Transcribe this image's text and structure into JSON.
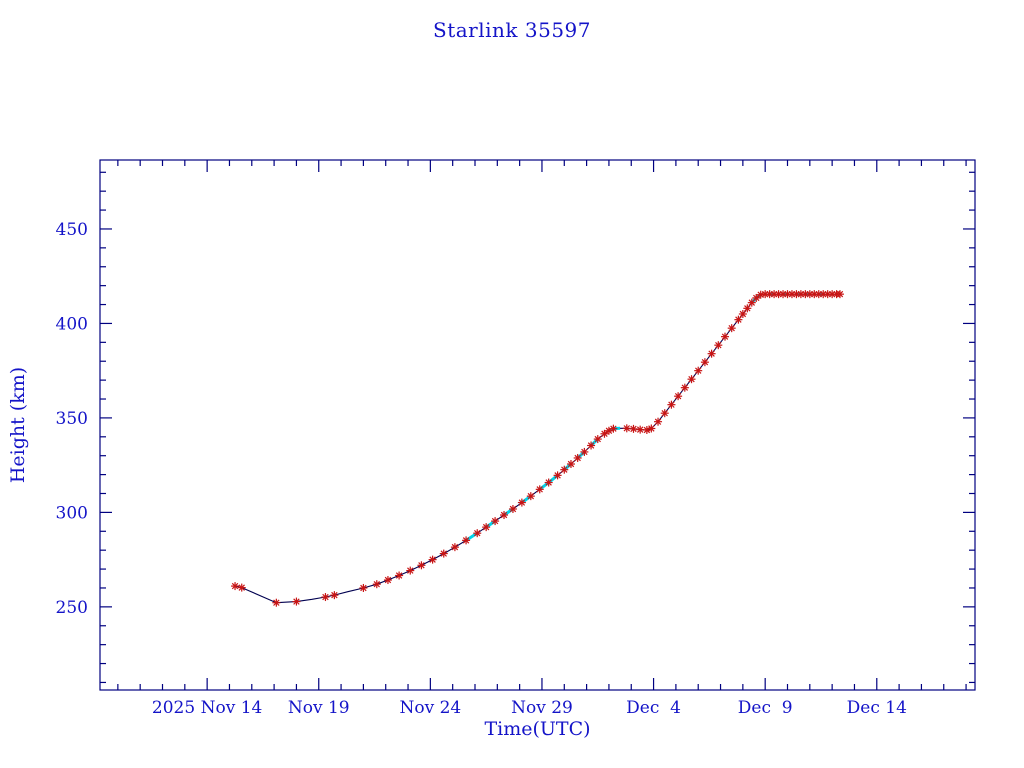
{
  "chart_data": {
    "type": "line",
    "title": "Starlink 35597",
    "xlabel": "Time(UTC)",
    "ylabel": "Height (km)",
    "x_unit": "days since 2025 Nov 14 00:00 UTC",
    "xlim": [
      -4.8,
      34.4
    ],
    "ylim": [
      206,
      486.5
    ],
    "y_ticks": [
      250,
      300,
      350,
      400,
      450
    ],
    "y_minor_step": 10,
    "x_ticks": [
      {
        "day": 0,
        "label": "2025 Nov 14"
      },
      {
        "day": 5,
        "label": "Nov 19"
      },
      {
        "day": 10,
        "label": "Nov 24"
      },
      {
        "day": 15,
        "label": "Nov 29"
      },
      {
        "day": 20,
        "label": "Dec  4"
      },
      {
        "day": 25,
        "label": "Dec  9"
      },
      {
        "day": 30,
        "label": "Dec 14"
      }
    ],
    "x_minor_step": 1,
    "grid": false,
    "legend": "none",
    "colors": {
      "text": "#1414c8",
      "axis": "#000080",
      "line": "#000050",
      "marker": "#c81414",
      "highlight": "#00d4ea"
    },
    "series": [
      {
        "name": "height",
        "note": "points are [day_offset, height_km, cyan_segment_flag, red_marker_flag]",
        "points": [
          [
            1.25,
            261.0,
            0,
            1
          ],
          [
            1.55,
            260.2,
            0,
            1
          ],
          [
            3.1,
            252.2,
            0,
            1
          ],
          [
            4.0,
            252.8,
            0,
            1
          ],
          [
            4.7,
            254.0,
            0,
            0
          ],
          [
            5.3,
            255.2,
            0,
            1
          ],
          [
            5.7,
            256.2,
            0,
            1
          ],
          [
            6.3,
            258.0,
            0,
            0
          ],
          [
            7.0,
            260.0,
            0,
            1
          ],
          [
            7.6,
            262.0,
            0,
            1
          ],
          [
            8.1,
            264.2,
            0,
            1
          ],
          [
            8.6,
            266.6,
            0,
            1
          ],
          [
            9.1,
            269.2,
            0,
            1
          ],
          [
            9.6,
            272.0,
            0,
            1
          ],
          [
            10.1,
            275.0,
            0,
            1
          ],
          [
            10.6,
            278.2,
            0,
            1
          ],
          [
            11.1,
            281.6,
            0,
            1
          ],
          [
            11.6,
            285.2,
            0,
            1
          ],
          [
            12.1,
            289.0,
            1,
            1
          ],
          [
            12.5,
            292.2,
            0,
            1
          ],
          [
            12.9,
            295.4,
            1,
            1
          ],
          [
            13.3,
            298.6,
            0,
            1
          ],
          [
            13.7,
            301.8,
            1,
            1
          ],
          [
            14.1,
            305.2,
            0,
            1
          ],
          [
            14.5,
            308.6,
            1,
            1
          ],
          [
            14.9,
            312.2,
            0,
            1
          ],
          [
            15.3,
            315.8,
            1,
            1
          ],
          [
            15.7,
            319.6,
            1,
            1
          ],
          [
            16.0,
            322.6,
            0,
            1
          ],
          [
            16.3,
            325.6,
            1,
            1
          ],
          [
            16.6,
            328.8,
            0,
            1
          ],
          [
            16.9,
            332.0,
            1,
            1
          ],
          [
            17.2,
            335.4,
            0,
            1
          ],
          [
            17.5,
            338.8,
            1,
            1
          ],
          [
            17.8,
            341.6,
            0,
            1
          ],
          [
            18.0,
            343.2,
            0,
            1
          ],
          [
            18.2,
            344.3,
            1,
            1
          ],
          [
            18.5,
            344.5,
            1,
            0
          ],
          [
            18.8,
            344.5,
            0,
            1
          ],
          [
            19.1,
            344.2,
            0,
            1
          ],
          [
            19.4,
            343.8,
            0,
            1
          ],
          [
            19.7,
            343.6,
            0,
            1
          ],
          [
            19.9,
            344.4,
            0,
            1
          ],
          [
            20.2,
            348.0,
            0,
            1
          ],
          [
            20.5,
            352.5,
            0,
            1
          ],
          [
            20.8,
            357.0,
            0,
            1
          ],
          [
            21.1,
            361.5,
            0,
            1
          ],
          [
            21.4,
            366.0,
            0,
            1
          ],
          [
            21.7,
            370.5,
            0,
            1
          ],
          [
            22.0,
            375.0,
            0,
            1
          ],
          [
            22.3,
            379.5,
            0,
            1
          ],
          [
            22.6,
            384.0,
            0,
            1
          ],
          [
            22.9,
            388.5,
            0,
            1
          ],
          [
            23.2,
            393.0,
            0,
            1
          ],
          [
            23.5,
            397.5,
            0,
            1
          ],
          [
            23.8,
            402.0,
            0,
            1
          ],
          [
            24.0,
            405.0,
            0,
            1
          ],
          [
            24.2,
            408.0,
            0,
            1
          ],
          [
            24.4,
            411.0,
            0,
            1
          ],
          [
            24.6,
            413.5,
            1,
            1
          ],
          [
            24.8,
            415.2,
            1,
            1
          ],
          [
            25.0,
            415.5,
            0,
            1
          ],
          [
            25.2,
            415.5,
            0,
            1
          ],
          [
            25.4,
            415.5,
            1,
            1
          ],
          [
            25.6,
            415.5,
            0,
            1
          ],
          [
            25.8,
            415.5,
            0,
            1
          ],
          [
            26.0,
            415.5,
            1,
            1
          ],
          [
            26.2,
            415.5,
            0,
            1
          ],
          [
            26.4,
            415.5,
            0,
            1
          ],
          [
            26.6,
            415.5,
            1,
            1
          ],
          [
            26.8,
            415.5,
            0,
            1
          ],
          [
            27.0,
            415.5,
            1,
            1
          ],
          [
            27.2,
            415.5,
            0,
            1
          ],
          [
            27.4,
            415.5,
            0,
            1
          ],
          [
            27.6,
            415.5,
            1,
            1
          ],
          [
            27.8,
            415.5,
            0,
            1
          ],
          [
            28.0,
            415.5,
            0,
            1
          ],
          [
            28.2,
            415.5,
            0,
            1
          ],
          [
            28.35,
            415.5,
            0,
            1
          ]
        ]
      }
    ]
  }
}
